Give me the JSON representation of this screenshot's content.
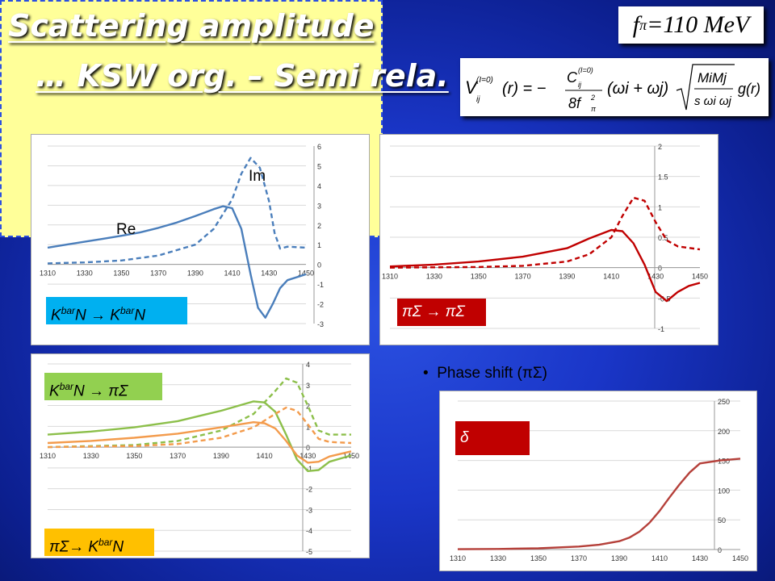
{
  "title_line1": "Scattering amplitude ",
  "title_line2": "… KSW org. – Semi rela.",
  "fpi": {
    "f": "f",
    "pi": "π",
    "rest": "=110 MeV"
  },
  "formula": {
    "lhs": "V",
    "lhs_sup": "(I=0)",
    "lhs_sub": "ij",
    "arg": "(r) = −",
    "num_C": "C",
    "num_sup": "(I=0)",
    "num_sub": "ij",
    "den": "8f",
    "den_sub": "π",
    "den_sup": "2",
    "omega_sum": "(ωi + ωj)",
    "sqrt_num": "MiMj",
    "sqrt_den": "s ωi ωj",
    "tail": "g(r)"
  },
  "labels": {
    "im": "Im",
    "re": "Re",
    "kn_kn": {
      "pre": "K",
      "sup1": "bar",
      "mid": "N → K",
      "sup2": "bar",
      "post": "N"
    },
    "ps_ps": "πΣ → πΣ",
    "kn_ps": {
      "pre": "K",
      "sup1": "bar",
      "post": "N → πΣ"
    },
    "ps_kn": {
      "pre": "πΣ→ K",
      "sup1": "bar",
      "post": "N"
    },
    "delta": "δ",
    "bullet": "Phase shift (πΣ)"
  },
  "colors": {
    "blue": "#4a7ebb",
    "red": "#c00000",
    "green": "#8cbf4a",
    "orange": "#f39b4c",
    "brown": "#b5403a"
  },
  "chart_data": [
    {
      "type": "line",
      "title": "",
      "x_ticks": [
        1310,
        1330,
        1350,
        1370,
        1390,
        1410,
        1430,
        1450
      ],
      "y_ticks": [
        -3,
        -2,
        -1,
        0,
        1,
        2,
        3,
        4,
        5,
        6
      ],
      "ylim": [
        -3,
        6
      ],
      "series": [
        {
          "name": "Re",
          "style": "solid",
          "color": "#4a7ebb",
          "points": [
            [
              1310,
              0.85
            ],
            [
              1320,
              1.0
            ],
            [
              1330,
              1.15
            ],
            [
              1340,
              1.3
            ],
            [
              1350,
              1.45
            ],
            [
              1360,
              1.62
            ],
            [
              1370,
              1.85
            ],
            [
              1380,
              2.12
            ],
            [
              1390,
              2.45
            ],
            [
              1400,
              2.8
            ],
            [
              1405,
              2.95
            ],
            [
              1410,
              2.85
            ],
            [
              1415,
              1.8
            ],
            [
              1420,
              -0.5
            ],
            [
              1424,
              -2.2
            ],
            [
              1428,
              -2.7
            ],
            [
              1432,
              -2.0
            ],
            [
              1436,
              -1.2
            ],
            [
              1440,
              -0.8
            ],
            [
              1450,
              -0.5
            ]
          ]
        },
        {
          "name": "Im",
          "style": "dashed",
          "color": "#4a7ebb",
          "points": [
            [
              1310,
              0.05
            ],
            [
              1330,
              0.1
            ],
            [
              1350,
              0.2
            ],
            [
              1370,
              0.45
            ],
            [
              1390,
              1.0
            ],
            [
              1400,
              1.8
            ],
            [
              1410,
              3.3
            ],
            [
              1415,
              4.6
            ],
            [
              1420,
              5.4
            ],
            [
              1425,
              4.9
            ],
            [
              1430,
              3.2
            ],
            [
              1433,
              1.6
            ],
            [
              1436,
              0.8
            ],
            [
              1440,
              0.9
            ],
            [
              1450,
              0.85
            ]
          ]
        }
      ]
    },
    {
      "type": "line",
      "title": "",
      "x_ticks": [
        1310,
        1330,
        1350,
        1370,
        1390,
        1410,
        1430,
        1450
      ],
      "y_ticks": [
        -1,
        -0.5,
        0,
        0.5,
        1,
        1.5,
        2
      ],
      "ylim": [
        -1,
        2
      ],
      "series": [
        {
          "name": "Re",
          "style": "solid",
          "color": "#c00000",
          "points": [
            [
              1310,
              0.02
            ],
            [
              1330,
              0.05
            ],
            [
              1350,
              0.1
            ],
            [
              1370,
              0.18
            ],
            [
              1390,
              0.32
            ],
            [
              1400,
              0.48
            ],
            [
              1410,
              0.62
            ],
            [
              1415,
              0.6
            ],
            [
              1420,
              0.4
            ],
            [
              1425,
              0.05
            ],
            [
              1430,
              -0.4
            ],
            [
              1435,
              -0.55
            ],
            [
              1440,
              -0.4
            ],
            [
              1445,
              -0.3
            ],
            [
              1450,
              -0.25
            ]
          ]
        },
        {
          "name": "Im",
          "style": "dashed",
          "color": "#c00000",
          "points": [
            [
              1310,
              0.0
            ],
            [
              1350,
              0.01
            ],
            [
              1370,
              0.03
            ],
            [
              1390,
              0.1
            ],
            [
              1400,
              0.22
            ],
            [
              1410,
              0.5
            ],
            [
              1415,
              0.85
            ],
            [
              1420,
              1.15
            ],
            [
              1425,
              1.1
            ],
            [
              1430,
              0.75
            ],
            [
              1435,
              0.45
            ],
            [
              1440,
              0.35
            ],
            [
              1450,
              0.3
            ]
          ]
        }
      ]
    },
    {
      "type": "line",
      "title": "",
      "x_ticks": [
        1310,
        1330,
        1350,
        1370,
        1390,
        1410,
        1430,
        1450
      ],
      "y_ticks": [
        -5,
        -4,
        -3,
        -2,
        -1,
        0,
        1,
        2,
        3,
        4
      ],
      "ylim": [
        -5,
        4
      ],
      "series": [
        {
          "name": "KbarN → πΣ Re",
          "style": "solid",
          "color": "#8cbf4a",
          "points": [
            [
              1310,
              0.6
            ],
            [
              1330,
              0.75
            ],
            [
              1350,
              0.95
            ],
            [
              1370,
              1.25
            ],
            [
              1390,
              1.75
            ],
            [
              1405,
              2.2
            ],
            [
              1410,
              2.15
            ],
            [
              1415,
              1.7
            ],
            [
              1420,
              0.6
            ],
            [
              1425,
              -0.6
            ],
            [
              1430,
              -1.15
            ],
            [
              1435,
              -1.1
            ],
            [
              1440,
              -0.7
            ],
            [
              1450,
              -0.4
            ]
          ]
        },
        {
          "name": "KbarN → πΣ Im",
          "style": "dashed",
          "color": "#8cbf4a",
          "points": [
            [
              1310,
              0.0
            ],
            [
              1350,
              0.1
            ],
            [
              1370,
              0.3
            ],
            [
              1390,
              0.8
            ],
            [
              1405,
              1.6
            ],
            [
              1415,
              2.7
            ],
            [
              1420,
              3.3
            ],
            [
              1425,
              3.1
            ],
            [
              1430,
              2.0
            ],
            [
              1435,
              0.8
            ],
            [
              1440,
              0.6
            ],
            [
              1450,
              0.6
            ]
          ]
        },
        {
          "name": "πΣ → KbarN Re",
          "style": "solid",
          "color": "#f39b4c",
          "points": [
            [
              1310,
              0.2
            ],
            [
              1330,
              0.3
            ],
            [
              1350,
              0.45
            ],
            [
              1370,
              0.65
            ],
            [
              1390,
              0.95
            ],
            [
              1405,
              1.2
            ],
            [
              1410,
              1.15
            ],
            [
              1415,
              0.9
            ],
            [
              1420,
              0.3
            ],
            [
              1425,
              -0.4
            ],
            [
              1430,
              -0.75
            ],
            [
              1435,
              -0.7
            ],
            [
              1440,
              -0.45
            ],
            [
              1450,
              -0.2
            ]
          ]
        },
        {
          "name": "πΣ → KbarN Im",
          "style": "dashed",
          "color": "#f39b4c",
          "points": [
            [
              1310,
              0.0
            ],
            [
              1350,
              0.05
            ],
            [
              1370,
              0.15
            ],
            [
              1390,
              0.45
            ],
            [
              1405,
              0.95
            ],
            [
              1415,
              1.6
            ],
            [
              1420,
              1.9
            ],
            [
              1425,
              1.75
            ],
            [
              1430,
              1.1
            ],
            [
              1435,
              0.4
            ],
            [
              1440,
              0.25
            ],
            [
              1450,
              0.2
            ]
          ]
        }
      ]
    },
    {
      "type": "line",
      "title": "",
      "x_ticks": [
        1310,
        1330,
        1350,
        1370,
        1390,
        1410,
        1430,
        1450
      ],
      "y_ticks": [
        0,
        50,
        100,
        150,
        200,
        250
      ],
      "ylim": [
        0,
        250
      ],
      "series": [
        {
          "name": "δ",
          "style": "solid",
          "color": "#b5403a",
          "points": [
            [
              1310,
              0.5
            ],
            [
              1330,
              1
            ],
            [
              1350,
              2
            ],
            [
              1370,
              5
            ],
            [
              1380,
              8
            ],
            [
              1390,
              14
            ],
            [
              1395,
              20
            ],
            [
              1400,
              30
            ],
            [
              1405,
              45
            ],
            [
              1410,
              65
            ],
            [
              1415,
              88
            ],
            [
              1420,
              110
            ],
            [
              1425,
              130
            ],
            [
              1430,
              145
            ],
            [
              1440,
              150
            ],
            [
              1450,
              153
            ]
          ]
        }
      ]
    }
  ]
}
